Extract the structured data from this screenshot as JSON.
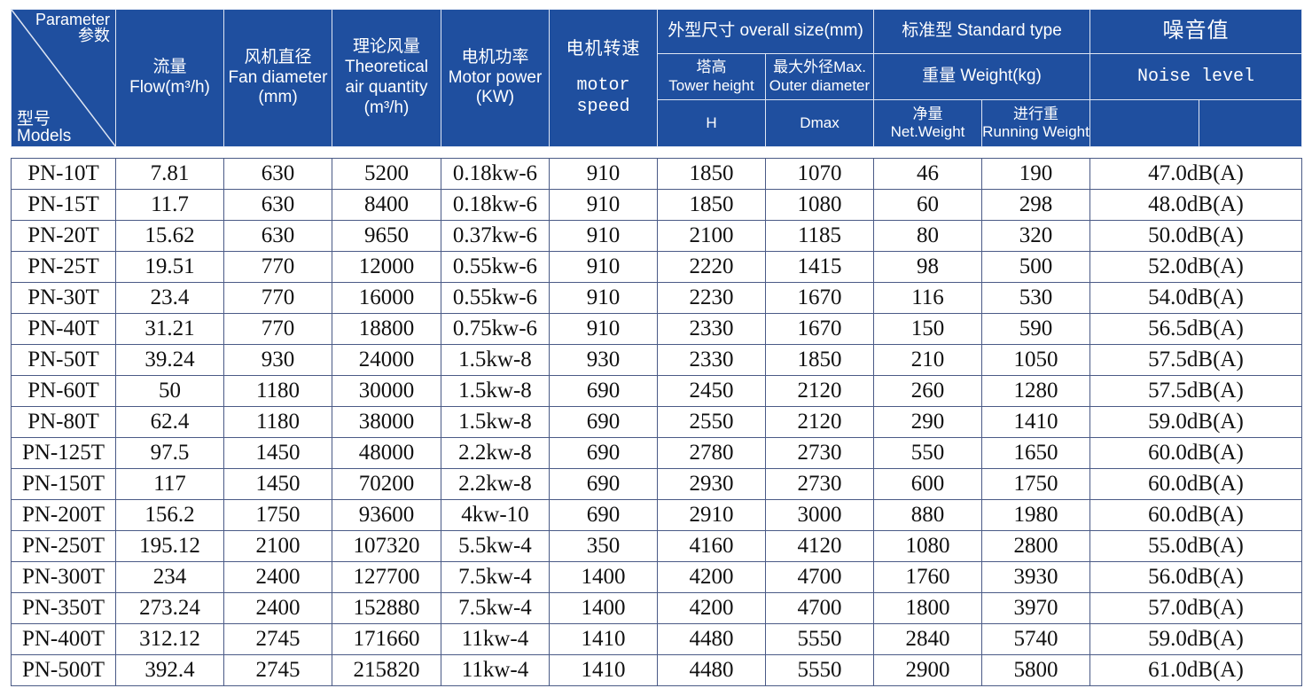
{
  "header": {
    "corner": {
      "top": [
        "Parameter",
        "参数"
      ],
      "bottom": [
        "型号",
        "Models"
      ]
    },
    "flow": [
      "流量",
      "Flow(m³/h)"
    ],
    "fan_diameter": [
      "风机直径",
      "Fan diameter",
      "(mm)"
    ],
    "air_quantity": [
      "理论风量",
      "Theoretical",
      "air quantity",
      "(m³/h)"
    ],
    "motor_power": [
      "电机功率",
      "Motor power",
      "(KW)"
    ],
    "motor_speed": [
      "电机转速",
      "motor",
      "speed"
    ],
    "overall_size": {
      "title": "外型尺寸 overall size(mm)",
      "tower_height": [
        "塔高",
        "Tower height"
      ],
      "outer_diameter": [
        "最大外径Max.",
        "Outer diameter"
      ],
      "h": "H",
      "dmax": "Dmax"
    },
    "standard_type": {
      "title": "标准型 Standard type",
      "weight": "重量 Weight(kg)",
      "net_weight": [
        "净量",
        "Net.Weight"
      ],
      "running_weight": [
        "进行重",
        "Running Weight"
      ]
    },
    "noise": [
      "噪音值",
      "Noise level"
    ]
  },
  "table": {
    "rows": [
      [
        "PN-10T",
        "7.81",
        "630",
        "5200",
        "0.18kw-6",
        "910",
        "1850",
        "1070",
        "46",
        "190",
        "47.0dB(A)"
      ],
      [
        "PN-15T",
        "11.7",
        "630",
        "8400",
        "0.18kw-6",
        "910",
        "1850",
        "1080",
        "60",
        "298",
        "48.0dB(A)"
      ],
      [
        "PN-20T",
        "15.62",
        "630",
        "9650",
        "0.37kw-6",
        "910",
        "2100",
        "1185",
        "80",
        "320",
        "50.0dB(A)"
      ],
      [
        "PN-25T",
        "19.51",
        "770",
        "12000",
        "0.55kw-6",
        "910",
        "2220",
        "1415",
        "98",
        "500",
        "52.0dB(A)"
      ],
      [
        "PN-30T",
        "23.4",
        "770",
        "16000",
        "0.55kw-6",
        "910",
        "2230",
        "1670",
        "116",
        "530",
        "54.0dB(A)"
      ],
      [
        "PN-40T",
        "31.21",
        "770",
        "18800",
        "0.75kw-6",
        "910",
        "2330",
        "1670",
        "150",
        "590",
        "56.5dB(A)"
      ],
      [
        "PN-50T",
        "39.24",
        "930",
        "24000",
        "1.5kw-8",
        "930",
        "2330",
        "1850",
        "210",
        "1050",
        "57.5dB(A)"
      ],
      [
        "PN-60T",
        "50",
        "1180",
        "30000",
        "1.5kw-8",
        "690",
        "2450",
        "2120",
        "260",
        "1280",
        "57.5dB(A)"
      ],
      [
        "PN-80T",
        "62.4",
        "1180",
        "38000",
        "1.5kw-8",
        "690",
        "2550",
        "2120",
        "290",
        "1410",
        "59.0dB(A)"
      ],
      [
        "PN-125T",
        "97.5",
        "1450",
        "48000",
        "2.2kw-8",
        "690",
        "2780",
        "2730",
        "550",
        "1650",
        "60.0dB(A)"
      ],
      [
        "PN-150T",
        "117",
        "1450",
        "70200",
        "2.2kw-8",
        "690",
        "2930",
        "2730",
        "600",
        "1750",
        "60.0dB(A)"
      ],
      [
        "PN-200T",
        "156.2",
        "1750",
        "93600",
        "4kw-10",
        "690",
        "2910",
        "3000",
        "880",
        "1980",
        "60.0dB(A)"
      ],
      [
        "PN-250T",
        "195.12",
        "2100",
        "107320",
        "5.5kw-4",
        "350",
        "4160",
        "4120",
        "1080",
        "2800",
        "55.0dB(A)"
      ],
      [
        "PN-300T",
        "234",
        "2400",
        "127700",
        "7.5kw-4",
        "1400",
        "4200",
        "4700",
        "1760",
        "3930",
        "56.0dB(A)"
      ],
      [
        "PN-350T",
        "273.24",
        "2400",
        "152880",
        "7.5kw-4",
        "1400",
        "4200",
        "4700",
        "1800",
        "3970",
        "57.0dB(A)"
      ],
      [
        "PN-400T",
        "312.12",
        "2745",
        "171660",
        "11kw-4",
        "1410",
        "4480",
        "5550",
        "2840",
        "5740",
        "59.0dB(A)"
      ],
      [
        "PN-500T",
        "392.4",
        "2745",
        "215820",
        "11kw-4",
        "1410",
        "4480",
        "5550",
        "2900",
        "5800",
        "61.0dB(A)"
      ]
    ]
  }
}
